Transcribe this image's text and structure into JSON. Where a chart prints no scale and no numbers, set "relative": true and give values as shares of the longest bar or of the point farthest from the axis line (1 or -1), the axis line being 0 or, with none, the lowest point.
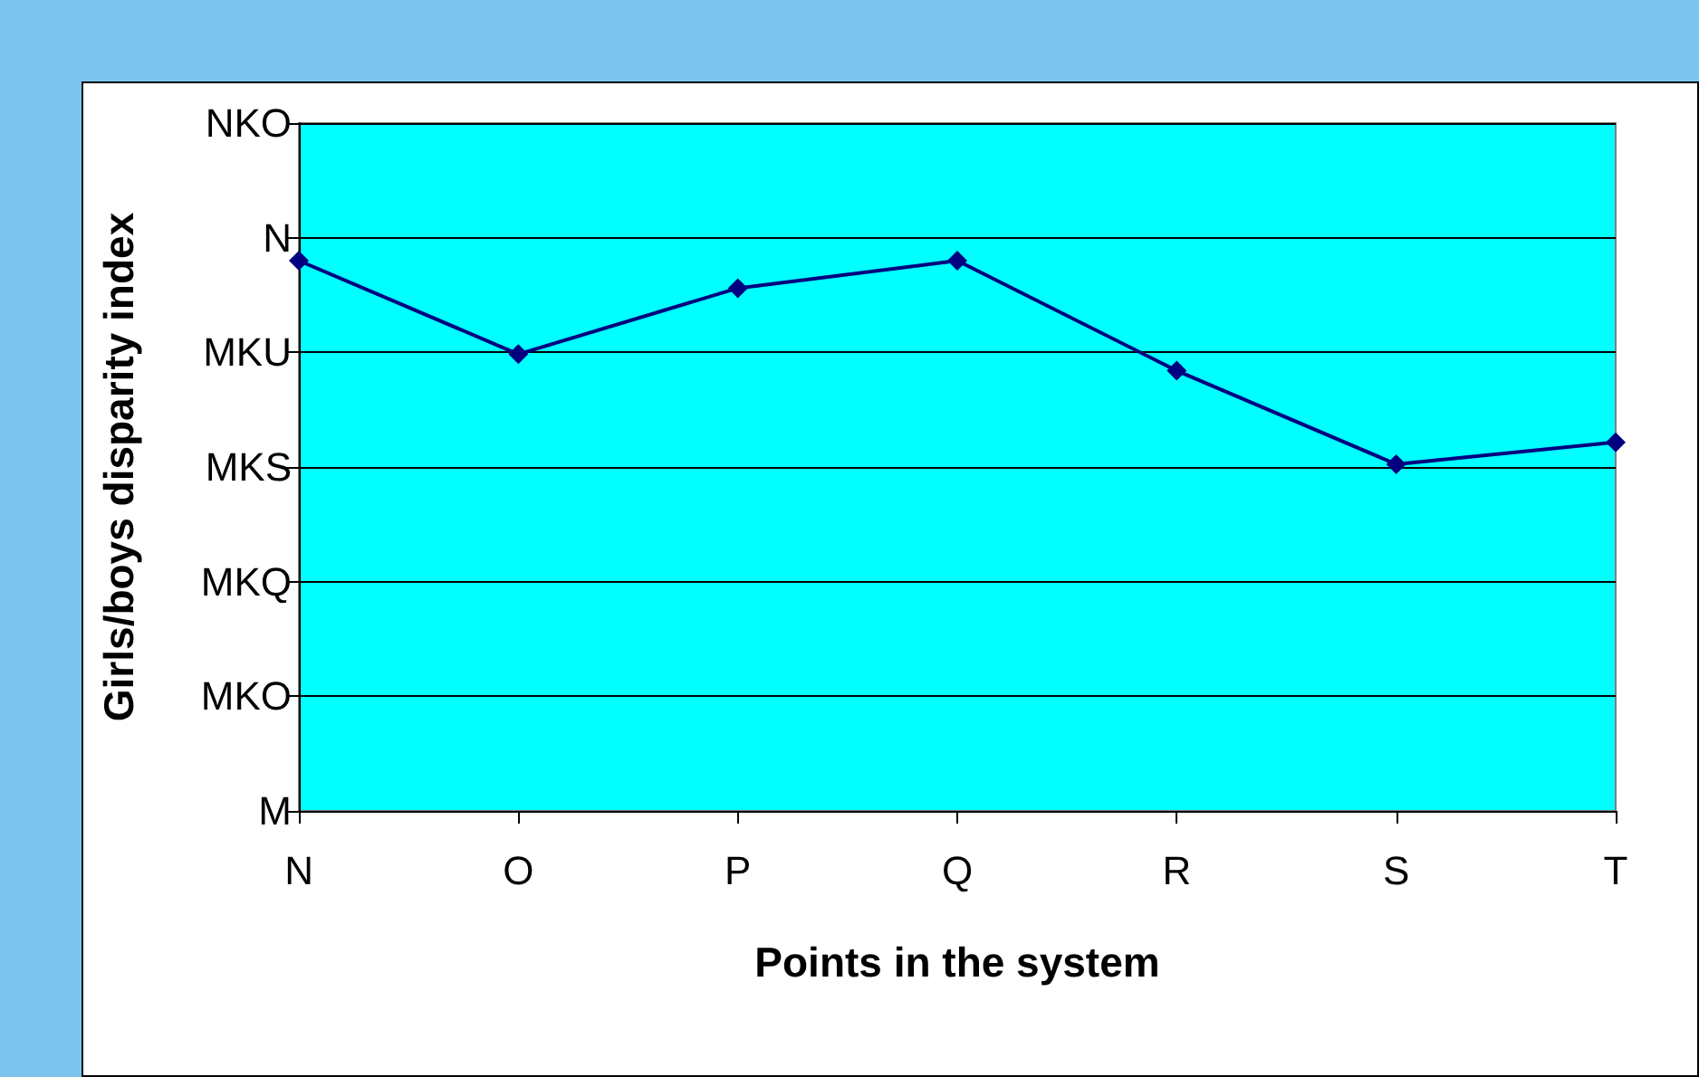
{
  "chart_data": {
    "type": "line",
    "xlabel": "Points in the system",
    "ylabel": "Girls/boys disparity index",
    "categories": [
      "N",
      "O",
      "P",
      "Q",
      "R",
      "S",
      "T"
    ],
    "series": [
      {
        "color": "#000080",
        "values": [
          1,
          0.83,
          0.95,
          1,
          0.8,
          0.63,
          0.67
        ]
      }
    ],
    "relative": true,
    "annotations": [
      "M",
      "MKO",
      "MKQ",
      "MKS",
      "MKU",
      "N",
      "NKO"
    ],
    "grid": "y",
    "marker": "diamond",
    "line_style": "solid"
  }
}
